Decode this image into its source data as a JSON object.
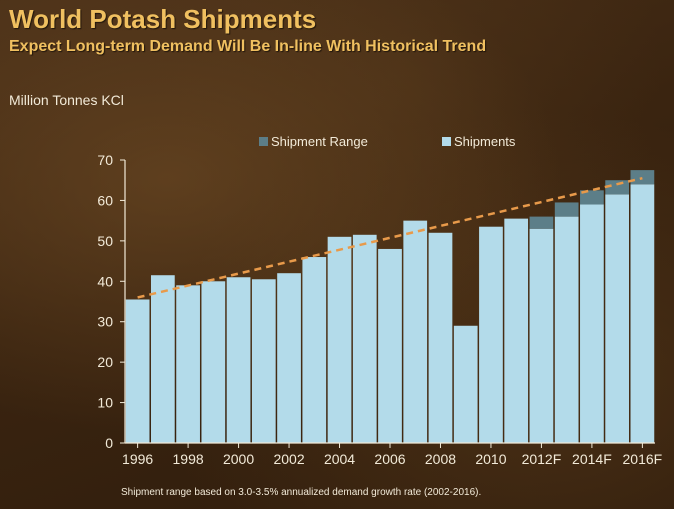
{
  "header": {
    "title": "World Potash Shipments",
    "subtitle": "Expect Long-term Demand Will Be In-line With Historical Trend",
    "units_label": "Million Tonnes KCl"
  },
  "footnote": "Shipment range based on 3.0-3.5% annualized demand growth rate (2002-2016).",
  "colors": {
    "bar_fill": "#b3dbea",
    "range_fill": "#5c7e88",
    "trend_line": "#e89a4a",
    "text": "#f2ead8"
  },
  "chart_data": {
    "type": "bar",
    "stacked": true,
    "categories": [
      "1996",
      "1997",
      "1998",
      "1999",
      "2000",
      "2001",
      "2002",
      "2003",
      "2004",
      "2005",
      "2006",
      "2007",
      "2008",
      "2009",
      "2010",
      "2011",
      "2012F",
      "2013F",
      "2014F",
      "2015F",
      "2016F"
    ],
    "x_tick_labels": [
      "1996",
      "1998",
      "2000",
      "2002",
      "2004",
      "2006",
      "2008",
      "2010",
      "2012F",
      "2014F",
      "2016F"
    ],
    "series": [
      {
        "name": "Shipments",
        "values": [
          35.5,
          41.5,
          39,
          40,
          41,
          40.5,
          42,
          46,
          51,
          51.5,
          48,
          55,
          52,
          29,
          53.5,
          55.5,
          53,
          56,
          59,
          61.5,
          64
        ]
      },
      {
        "name": "Shipment Range",
        "values": [
          0,
          0,
          0,
          0,
          0,
          0,
          0,
          0,
          0,
          0,
          0,
          0,
          0,
          0,
          0,
          0,
          3,
          3.5,
          3.5,
          3.5,
          3.5
        ]
      }
    ],
    "trend_line": {
      "style": "dashed",
      "start": {
        "x": "1996",
        "y": 36
      },
      "end": {
        "x": "2016F",
        "y": 65.5
      }
    },
    "ylim": [
      0,
      70
    ],
    "yticks": [
      0,
      10,
      20,
      30,
      40,
      50,
      60,
      70
    ],
    "legend": {
      "placement": "top",
      "entries": [
        "Shipment Range",
        "Shipments"
      ]
    },
    "grid": false
  }
}
